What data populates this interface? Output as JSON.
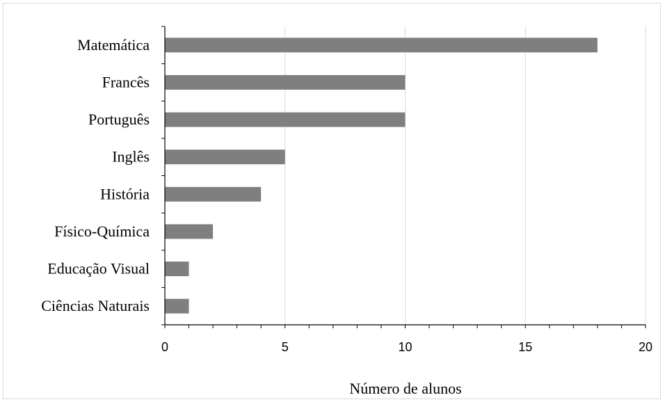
{
  "chart_data": {
    "type": "bar",
    "orientation": "horizontal",
    "categories": [
      "Matemática",
      "Francês",
      "Português",
      "Inglês",
      "História",
      "Físico-Química",
      "Educação Visual",
      "Ciências Naturais"
    ],
    "values": [
      18,
      10,
      10,
      5,
      4,
      2,
      1,
      1
    ],
    "xlabel": "Número de alunos",
    "ylabel": "",
    "xlim": [
      0,
      20
    ],
    "xticks": [
      0,
      5,
      10,
      15,
      20
    ],
    "grid": "vertical",
    "legend": "none",
    "colors": {
      "bar": "#7f7f7f",
      "grid": "#d9d9d9",
      "axis": "#000000"
    }
  }
}
